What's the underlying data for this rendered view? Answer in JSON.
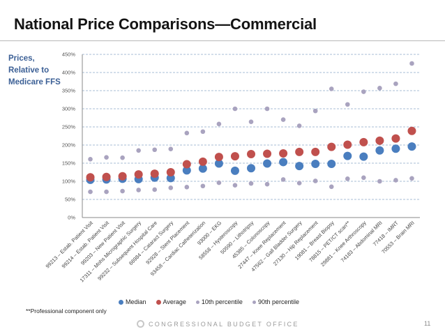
{
  "slide": {
    "title": "National Price Comparisons—Commercial",
    "side_label": [
      "Prices,",
      "Relative to",
      "Medicare FFS"
    ],
    "footnote": "**Professional component only",
    "footer": "CONGRESSIONAL BUDGET OFFICE",
    "page_number": "11",
    "colors": {
      "median": "#4a7ebf",
      "average": "#c0504d",
      "p10": "#a9a3bf",
      "p90": "#a9a3bf",
      "grid": "#8aa7c7",
      "axis": "#888888"
    }
  },
  "chart_data": {
    "type": "scatter",
    "title": "National Price Comparisons—Commercial",
    "xlabel": "",
    "ylabel": "Prices, Relative to Medicare FFS",
    "ylim": [
      0,
      450
    ],
    "yticks": [
      0,
      50,
      100,
      150,
      200,
      250,
      300,
      350,
      400,
      450
    ],
    "ytick_labels": [
      "0%",
      "50%",
      "100%",
      "150%",
      "200%",
      "250%",
      "300%",
      "350%",
      "400%",
      "450%"
    ],
    "grid": true,
    "legend_position": "bottom",
    "categories": [
      "99213 – Estab. Patient Visit",
      "99214 – Estab. Patient Visit",
      "99203 – New Patient Visit",
      "17311 – Mohs Micrographic Surgery",
      "99232 – Subsequent Hospital Care",
      "66984 – Cataract Surgery",
      "92928 – Stent Placement",
      "93458 – Cardiac Catheterization",
      "93000 – EKG",
      "58558 – Hysteroscopy",
      "50590 – Lithotripsy",
      "45385 – Colonoscopy",
      "27447 – Knee Replacement",
      "47562 – Gall Bladder Surgery",
      "27130 – Hip Replacement",
      "19081 – Breast Biopsy",
      "78815 – PET/CT scan**",
      "29881 – Knee Arthroscopy",
      "74183 – Abdominal MRI",
      "77418 – IMRT",
      "70553 – Brain MRI"
    ],
    "series": [
      {
        "name": "Median",
        "key": "median",
        "values": [
          104,
          105,
          107,
          106,
          110,
          109,
          130,
          135,
          149,
          129,
          136,
          149,
          153,
          142,
          148,
          148,
          170,
          168,
          185,
          190,
          196
        ]
      },
      {
        "name": "Average",
        "key": "average",
        "values": [
          111,
          112,
          114,
          119,
          121,
          125,
          147,
          154,
          167,
          169,
          175,
          176,
          177,
          181,
          181,
          195,
          201,
          208,
          212,
          218,
          239
        ]
      },
      {
        "name": "10th percentile",
        "key": "p10",
        "values": [
          71,
          71,
          73,
          76,
          77,
          82,
          84,
          87,
          96,
          89,
          94,
          92,
          105,
          95,
          101,
          85,
          107,
          110,
          100,
          103,
          108
        ]
      },
      {
        "name": "90th percentile",
        "key": "p90",
        "values": [
          161,
          166,
          165,
          185,
          187,
          189,
          233,
          237,
          258,
          300,
          264,
          300,
          270,
          253,
          294,
          355,
          312,
          347,
          357,
          369,
          425
        ]
      }
    ]
  }
}
